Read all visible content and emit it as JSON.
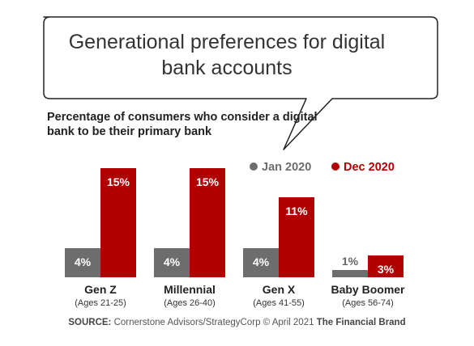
{
  "chart_data": {
    "type": "bar",
    "title": "Generational preferences for digital bank accounts",
    "subtitle": "Percentage of consumers who consider a digital bank to be their primary bank",
    "categories": [
      "Gen Z",
      "Millennial",
      "Gen X",
      "Baby Boomer"
    ],
    "category_sublabels": [
      "(Ages 21-25)",
      "(Ages 26-40)",
      "(Ages 41-55)",
      "(Ages 56-74)"
    ],
    "series": [
      {
        "name": "Jan 2020",
        "color": "#6d6d6d",
        "values": [
          4,
          4,
          4,
          1
        ],
        "labels": [
          "4%",
          "4%",
          "4%",
          "1%"
        ]
      },
      {
        "name": "Dec 2020",
        "color": "#b00000",
        "values": [
          15,
          15,
          11,
          3
        ],
        "labels": [
          "15%",
          "15%",
          "11%",
          "3%"
        ]
      }
    ],
    "ylim": [
      0,
      15
    ],
    "grid": false,
    "legend_position": "top-right"
  },
  "source": {
    "label": "SOURCE:",
    "text": "Cornerstone Advisors/StrategyCorp © April 2021",
    "brand": "The Financial Brand"
  }
}
